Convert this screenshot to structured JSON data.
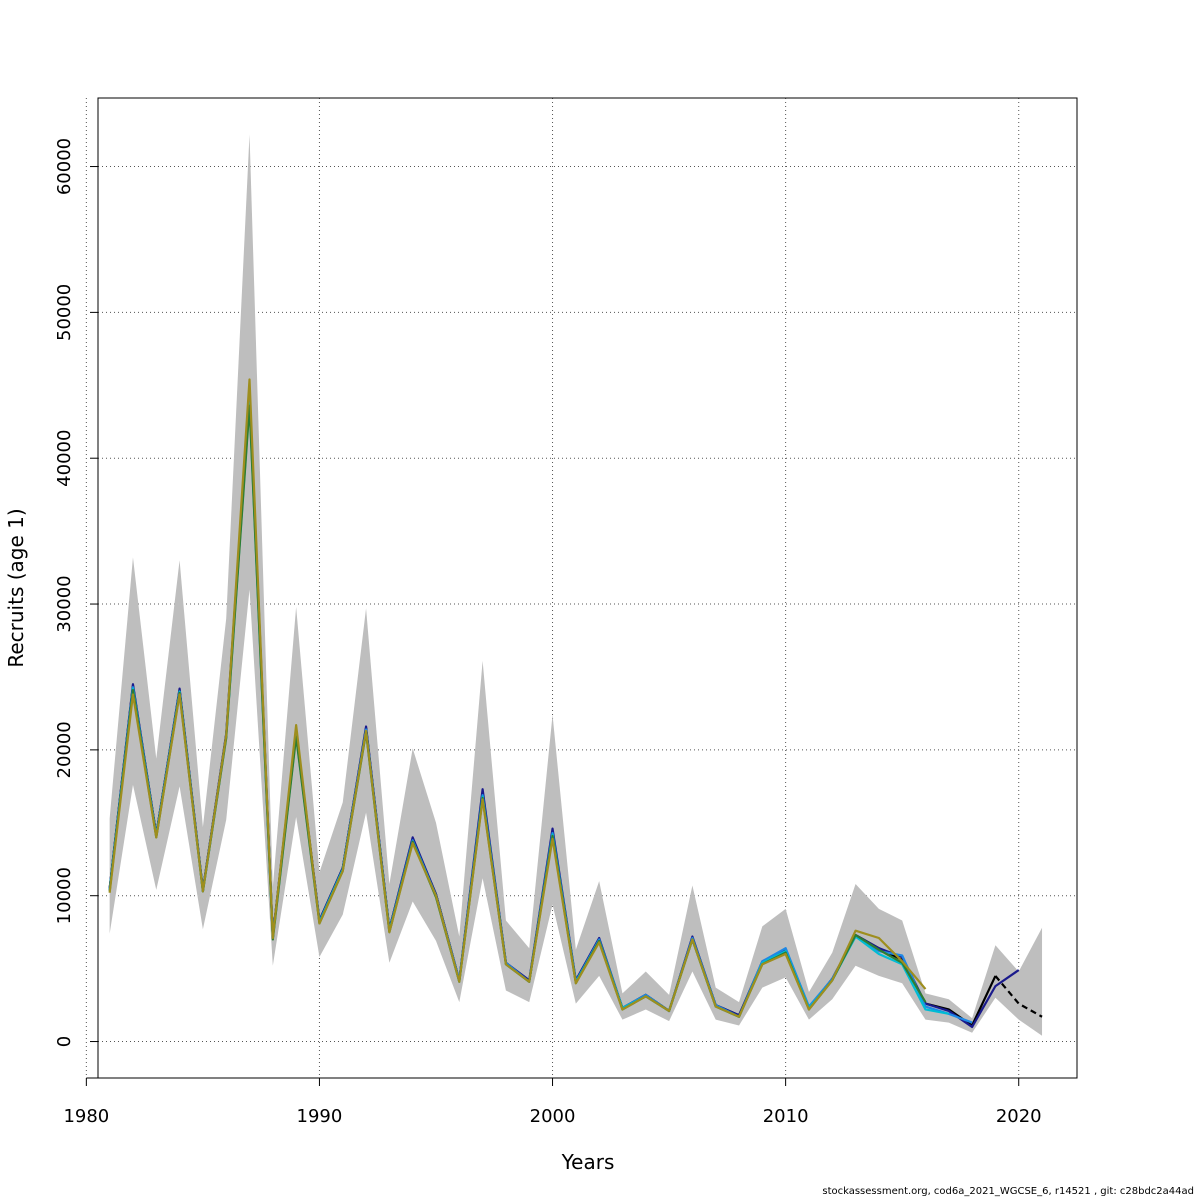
{
  "footer": "stockassessment.org, cod6a_2021_WGCSE_6, r14521 , git: c28bdc2a44ad",
  "chart_data": {
    "type": "line",
    "title": "",
    "xlabel": "Years",
    "ylabel": "Recruits (age 1)",
    "xlim": [
      1980.5,
      2022.5
    ],
    "ylim": [
      -2500,
      64700
    ],
    "xticks": [
      1980,
      1990,
      2000,
      2010,
      2020
    ],
    "yticks": [
      0,
      10000,
      20000,
      30000,
      40000,
      50000,
      60000
    ],
    "grid": true,
    "band_color": "#bebebe",
    "confidence_band": {
      "x": [
        1981,
        1982,
        1983,
        1984,
        1985,
        1986,
        1987,
        1988,
        1989,
        1990,
        1991,
        1992,
        1993,
        1994,
        1995,
        1996,
        1997,
        1998,
        1999,
        2000,
        2001,
        2002,
        2003,
        2004,
        2005,
        2006,
        2007,
        2008,
        2009,
        2010,
        2011,
        2012,
        2013,
        2014,
        2015,
        2016,
        2017,
        2018,
        2019,
        2020,
        2021
      ],
      "lower": [
        7400,
        17600,
        10400,
        17500,
        7700,
        15200,
        31000,
        5200,
        15400,
        5800,
        8700,
        15700,
        5400,
        9600,
        6900,
        2700,
        11200,
        3500,
        2700,
        9400,
        2600,
        4500,
        1500,
        2200,
        1400,
        4800,
        1500,
        1100,
        3700,
        4400,
        1500,
        2900,
        5200,
        4500,
        4000,
        1500,
        1300,
        600,
        3000,
        1500,
        400
      ],
      "upper": [
        15300,
        33200,
        19400,
        33000,
        14700,
        29000,
        62200,
        10600,
        29800,
        11600,
        16400,
        29700,
        10800,
        20100,
        15000,
        7200,
        26100,
        8300,
        6400,
        22400,
        6300,
        11000,
        3300,
        4800,
        3200,
        10700,
        3700,
        2700,
        7900,
        9100,
        3400,
        6100,
        10800,
        9100,
        8300,
        3300,
        2900,
        1600,
        6600,
        4800,
        7800
      ]
    },
    "series": [
      {
        "color": "#000000",
        "dashed": false,
        "x": [
          1981,
          1982,
          1983,
          1984,
          1985,
          1986,
          1987,
          1988,
          1989,
          1990,
          1991,
          1992,
          1993,
          1994,
          1995,
          1996,
          1997,
          1998,
          1999,
          2000,
          2001,
          2002,
          2003,
          2004,
          2005,
          2006,
          2007,
          2008,
          2009,
          2010,
          2011,
          2012,
          2013,
          2014,
          2015,
          2016,
          2017,
          2018,
          2019
        ],
        "values": [
          10500,
          24400,
          14200,
          24100,
          10400,
          21000,
          44300,
          7200,
          21200,
          8300,
          11900,
          21500,
          7700,
          13900,
          10100,
          4200,
          17000,
          5400,
          4100,
          14400,
          4100,
          7000,
          2300,
          3200,
          2100,
          7100,
          2500,
          1800,
          5400,
          6200,
          2300,
          4300,
          7300,
          6400,
          5600,
          2600,
          2200,
          1100,
          4500
        ]
      },
      {
        "color": "#000000",
        "dashed": true,
        "x": [
          2019,
          2020,
          2021
        ],
        "values": [
          4500,
          2600,
          1700
        ]
      },
      {
        "color": "#1a1a8c",
        "dashed": false,
        "x": [
          1981,
          1982,
          1983,
          1984,
          1985,
          1986,
          1987,
          1988,
          1989,
          1990,
          1991,
          1992,
          1993,
          1994,
          1995,
          1996,
          1997,
          1998,
          1999,
          2000,
          2001,
          2002,
          2003,
          2004,
          2005,
          2006,
          2007,
          2008,
          2009,
          2010,
          2011,
          2012,
          2013,
          2014,
          2015,
          2016,
          2017,
          2018,
          2019,
          2020
        ],
        "values": [
          10500,
          24500,
          14200,
          24200,
          10400,
          21100,
          44500,
          7200,
          21300,
          8300,
          11900,
          21600,
          7700,
          14000,
          10100,
          4200,
          17300,
          5400,
          4200,
          14600,
          4200,
          7100,
          2300,
          3200,
          2100,
          7200,
          2500,
          1800,
          5500,
          6300,
          2300,
          4300,
          7300,
          6400,
          5800,
          2600,
          2100,
          1000,
          3800,
          4900
        ]
      },
      {
        "color": "#1e88e5",
        "dashed": false,
        "x": [
          1981,
          1982,
          1983,
          1984,
          1985,
          1986,
          1987,
          1988,
          1989,
          1990,
          1991,
          1992,
          1993,
          1994,
          1995,
          1996,
          1997,
          1998,
          1999,
          2000,
          2001,
          2002,
          2003,
          2004,
          2005,
          2006,
          2007,
          2008,
          2009,
          2010,
          2011,
          2012,
          2013,
          2014,
          2015,
          2016,
          2017,
          2018
        ],
        "values": [
          10400,
          24300,
          14100,
          24000,
          10300,
          20900,
          44000,
          7100,
          21100,
          8200,
          11800,
          21400,
          7600,
          13800,
          10000,
          4200,
          16900,
          5400,
          4100,
          14300,
          4100,
          7000,
          2300,
          3200,
          2100,
          7100,
          2500,
          1700,
          5500,
          6400,
          2400,
          4300,
          7200,
          6200,
          5900,
          2400,
          1900,
          1300
        ]
      },
      {
        "color": "#00bcd4",
        "dashed": false,
        "x": [
          1981,
          1982,
          1983,
          1984,
          1985,
          1986,
          1987,
          1988,
          1989,
          1990,
          1991,
          1992,
          1993,
          1994,
          1995,
          1996,
          1997,
          1998,
          1999,
          2000,
          2001,
          2002,
          2003,
          2004,
          2005,
          2006,
          2007,
          2008,
          2009,
          2010,
          2011,
          2012,
          2013,
          2014,
          2015,
          2016,
          2017
        ],
        "values": [
          10400,
          24200,
          14100,
          24000,
          10300,
          20900,
          43800,
          7100,
          21000,
          8200,
          11800,
          21300,
          7600,
          13700,
          10000,
          4100,
          16800,
          5300,
          4100,
          14200,
          4100,
          6900,
          2300,
          3100,
          2100,
          7000,
          2400,
          1700,
          5400,
          6200,
          2300,
          4200,
          7200,
          6000,
          5300,
          2200,
          1900
        ]
      },
      {
        "color": "#2e7d32",
        "dashed": false,
        "x": [
          1981,
          1982,
          1983,
          1984,
          1985,
          1986,
          1987,
          1988,
          1989,
          1990,
          1991,
          1992,
          1993,
          1994,
          1995,
          1996,
          1997,
          1998,
          1999,
          2000,
          2001,
          2002,
          2003,
          2004,
          2005,
          2006,
          2007,
          2008,
          2009,
          2010,
          2011,
          2012,
          2013,
          2014,
          2015,
          2016
        ],
        "values": [
          10300,
          24100,
          14000,
          23900,
          10300,
          20800,
          43600,
          7000,
          20900,
          8100,
          11700,
          21200,
          7500,
          13700,
          9900,
          4100,
          16700,
          5300,
          4100,
          14100,
          4000,
          6900,
          2200,
          3100,
          2100,
          7000,
          2400,
          1700,
          5300,
          6100,
          2200,
          4200,
          7300,
          6300,
          5400,
          2700
        ]
      },
      {
        "color": "#9e8e1e",
        "dashed": false,
        "x": [
          1981,
          1982,
          1983,
          1984,
          1985,
          1986,
          1987,
          1988,
          1989,
          1990,
          1991,
          1992,
          1993,
          1994,
          1995,
          1996,
          1997,
          1998,
          1999,
          2000,
          2001,
          2002,
          2003,
          2004,
          2005,
          2006,
          2007,
          2008,
          2009,
          2010,
          2011,
          2012,
          2013,
          2014,
          2015,
          2016
        ],
        "values": [
          10200,
          23800,
          14000,
          23800,
          10300,
          21000,
          45400,
          7100,
          21700,
          8100,
          11700,
          21300,
          7500,
          13600,
          10000,
          4100,
          16600,
          5300,
          4100,
          13900,
          4000,
          6800,
          2200,
          3100,
          2100,
          7000,
          2400,
          1700,
          5300,
          6000,
          2200,
          4200,
          7600,
          7100,
          5500,
          3600
        ]
      }
    ]
  }
}
